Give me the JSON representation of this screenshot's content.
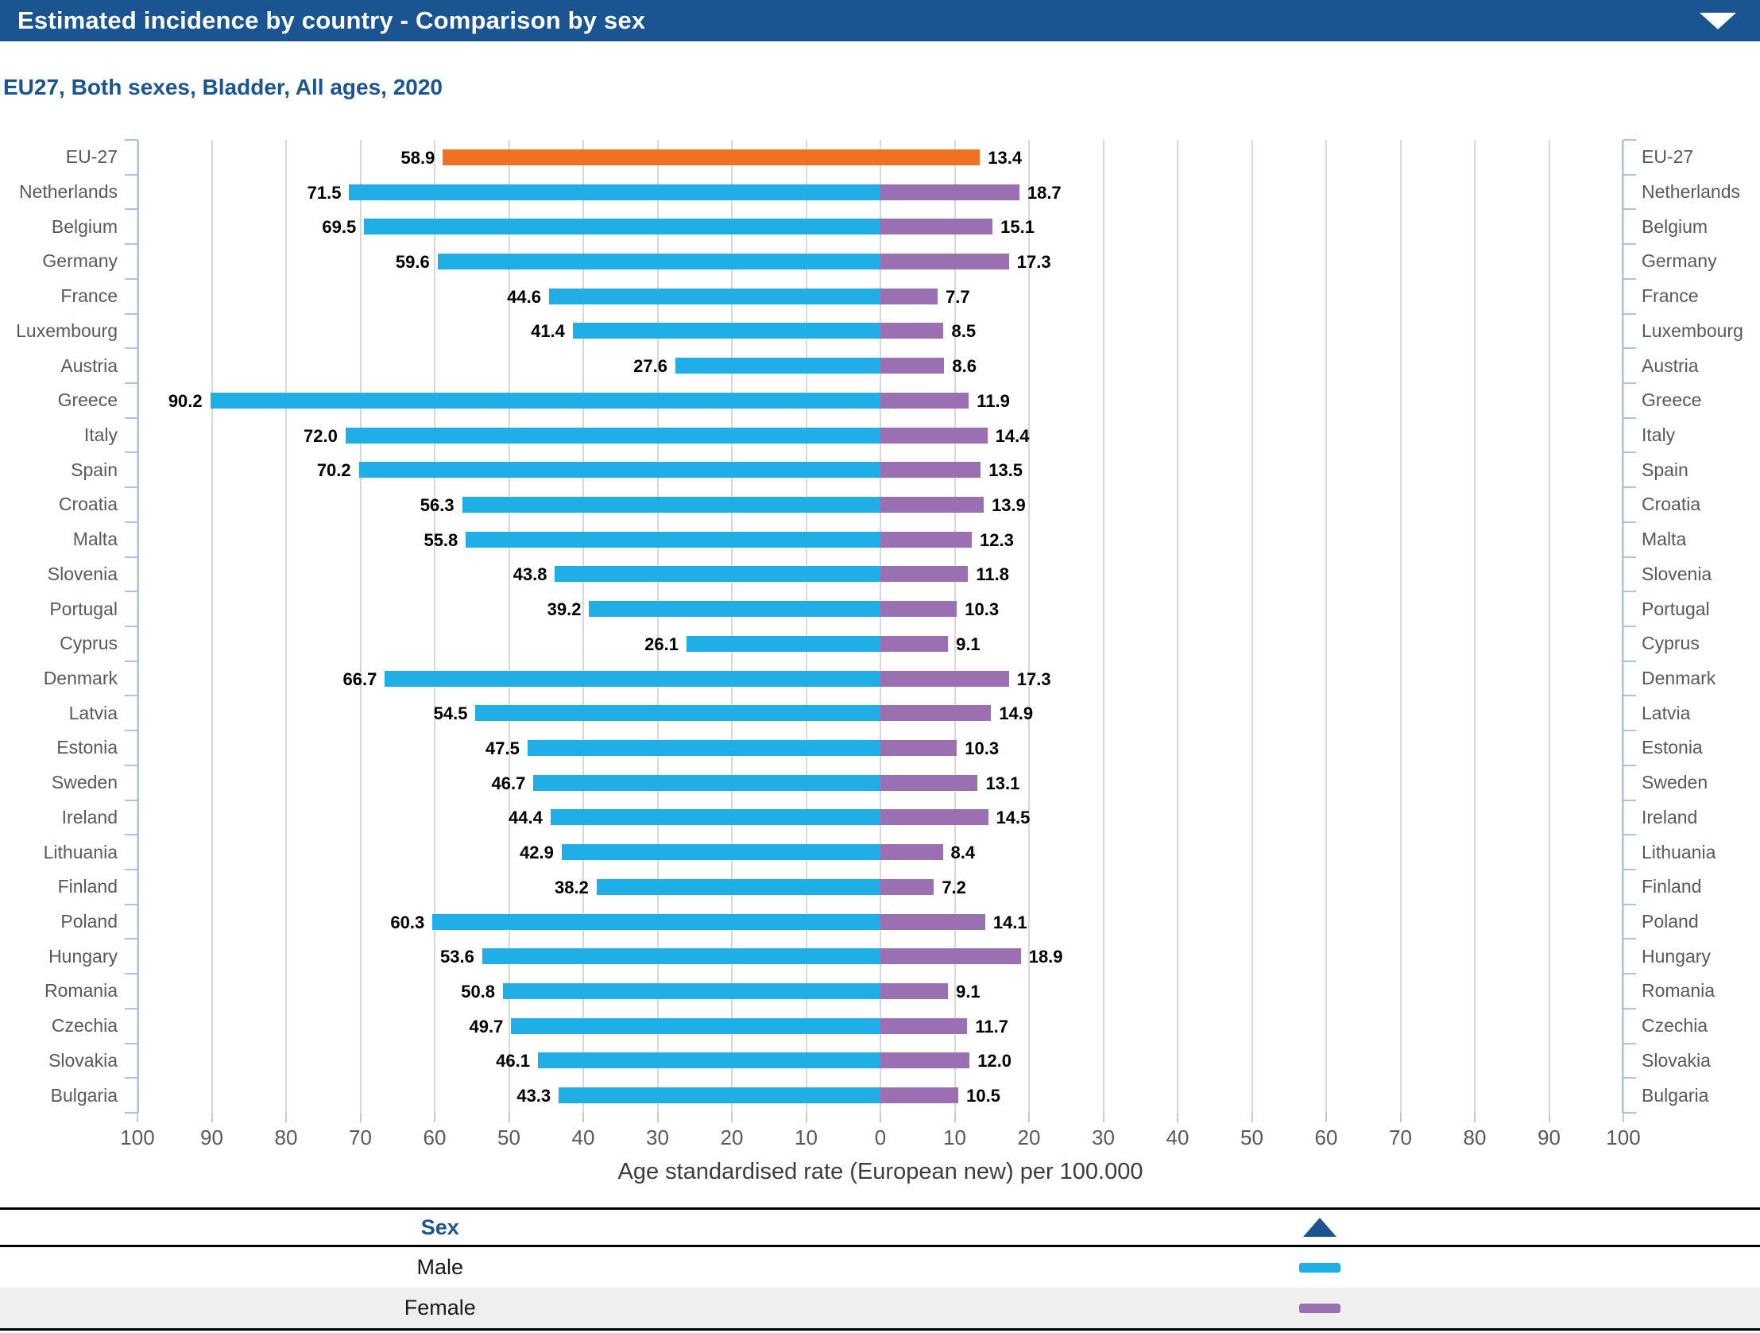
{
  "header": {
    "title": "Estimated incidence by country - Comparison by sex"
  },
  "subtitle": "EU27, Both sexes, Bladder, All ages, 2020",
  "chart_data": {
    "type": "bar",
    "variant": "diverging-horizontal-tornado",
    "title": "Estimated incidence by country - Comparison by sex",
    "subtitle": "EU27, Both sexes, Bladder, All ages, 2020",
    "xlabel": "Age standardised rate (European new) per 100.000",
    "value_format_decimals": 1,
    "axis_ticks": [
      100,
      90,
      80,
      70,
      60,
      50,
      40,
      30,
      20,
      10,
      0,
      10,
      20,
      30,
      40,
      50,
      60,
      70,
      80,
      90,
      100
    ],
    "xlim": [
      -100,
      100
    ],
    "grid": true,
    "legend_position": "bottom",
    "categories": [
      "EU-27",
      "Netherlands",
      "Belgium",
      "Germany",
      "France",
      "Luxembourg",
      "Austria",
      "Greece",
      "Italy",
      "Spain",
      "Croatia",
      "Malta",
      "Slovenia",
      "Portugal",
      "Cyprus",
      "Denmark",
      "Latvia",
      "Estonia",
      "Sweden",
      "Ireland",
      "Lithuania",
      "Finland",
      "Poland",
      "Hungary",
      "Romania",
      "Czechia",
      "Slovakia",
      "Bulgaria"
    ],
    "series": [
      {
        "name": "Male",
        "side": "left",
        "color": "#1FAEE5",
        "values": [
          58.9,
          71.5,
          69.5,
          59.6,
          44.6,
          41.4,
          27.6,
          90.2,
          72.0,
          70.2,
          56.3,
          55.8,
          43.8,
          39.2,
          26.1,
          66.7,
          54.5,
          47.5,
          46.7,
          44.4,
          42.9,
          38.2,
          60.3,
          53.6,
          50.8,
          49.7,
          46.1,
          43.3
        ]
      },
      {
        "name": "Female",
        "side": "right",
        "color": "#9A70B2",
        "values": [
          13.4,
          18.7,
          15.1,
          17.3,
          7.7,
          8.5,
          8.6,
          11.9,
          14.4,
          13.5,
          13.9,
          12.3,
          11.8,
          10.3,
          9.1,
          17.3,
          14.9,
          10.3,
          13.1,
          14.5,
          8.4,
          7.2,
          14.1,
          18.9,
          9.1,
          11.7,
          12.0,
          10.5
        ]
      }
    ],
    "highlight": {
      "category": "EU-27",
      "color": "#EE7223"
    }
  },
  "legend": {
    "header": "Sex",
    "sort_icon": "triangle-up",
    "items": [
      {
        "label": "Male",
        "color": "#1FAEE5"
      },
      {
        "label": "Female",
        "color": "#9A70B2"
      }
    ]
  },
  "colors": {
    "header_bg": "#1A5591",
    "accent_blue": "#1A5591",
    "male": "#1FAEE5",
    "female": "#9A70B2",
    "highlight": "#EE7223",
    "gridline": "#D8D8D8",
    "axis_line": "#A9C4E4",
    "label_gray": "#595959"
  }
}
